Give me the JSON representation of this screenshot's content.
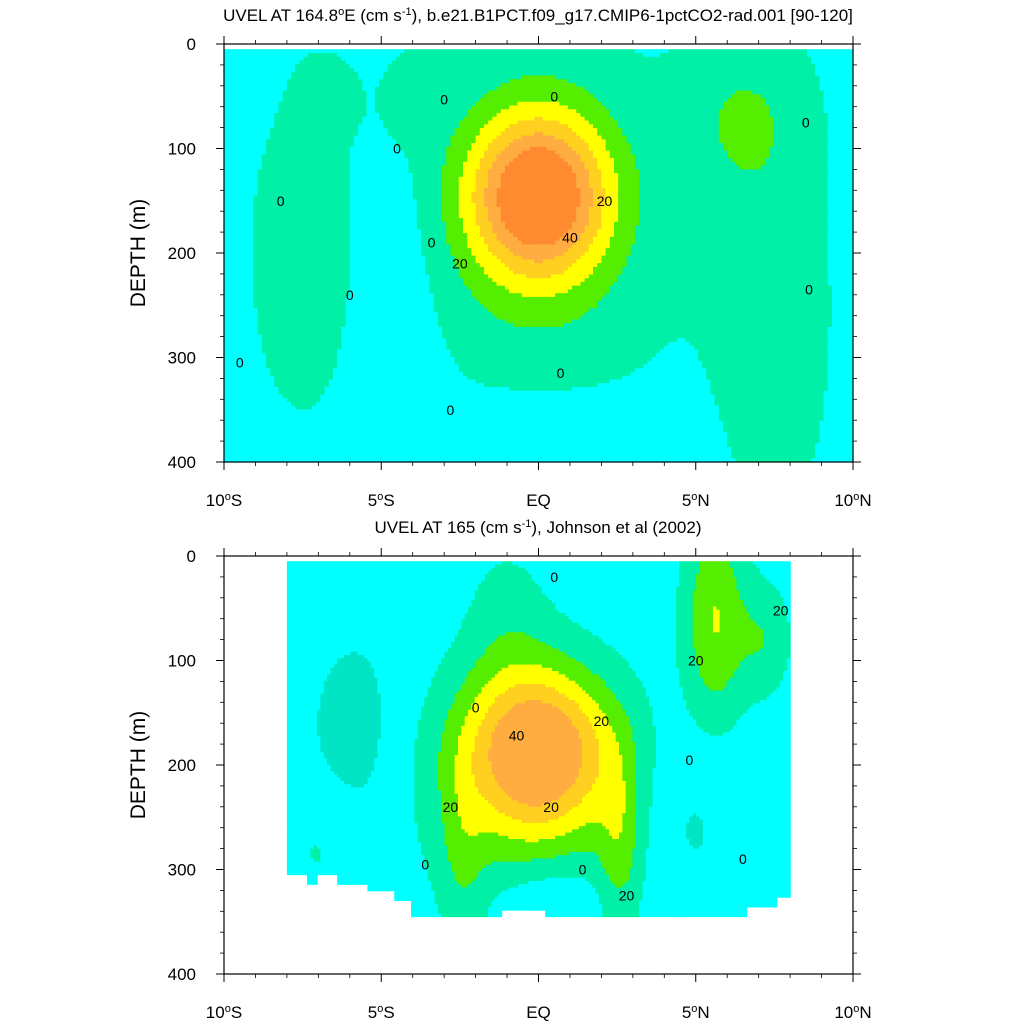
{
  "chart_data": [
    {
      "type": "heatmap",
      "title_parts": [
        "UVEL AT 164.8",
        "o",
        "E (cm s",
        "-1",
        "), b.e21.B1PCT.f09_g17.CMIP6-1pctCO2-rad.001 [90-120]"
      ],
      "ylabel": "DEPTH (m)",
      "x_range": [
        -10,
        10
      ],
      "ylim": [
        0,
        400
      ],
      "x_ticks": [
        {
          "value": -10,
          "parts": [
            "10",
            "o",
            "S"
          ]
        },
        {
          "value": -5,
          "parts": [
            "5",
            "o",
            "S"
          ]
        },
        {
          "value": 0,
          "parts": [
            "EQ"
          ]
        },
        {
          "value": 5,
          "parts": [
            "5",
            "o",
            "N"
          ]
        },
        {
          "value": 10,
          "parts": [
            "10",
            "o",
            "N"
          ]
        }
      ],
      "y_ticks": [
        "0",
        "100",
        "200",
        "300",
        "400"
      ],
      "contour_levels": [
        -10,
        0,
        10,
        20,
        30,
        40,
        50
      ],
      "contour_colors": [
        "#00e5c4",
        "#00ffff",
        "#00f0a8",
        "#55ee00",
        "#ffff00",
        "#ffd020",
        "#ffac40",
        "#ff8a30"
      ],
      "contour_labels": [
        {
          "text": "0",
          "x": -3.0,
          "y": 53
        },
        {
          "text": "0",
          "x": 0.5,
          "y": 50
        },
        {
          "text": "20",
          "x": 2.1,
          "y": 150
        },
        {
          "text": "40",
          "x": 1.0,
          "y": 185
        },
        {
          "text": "20",
          "x": -2.5,
          "y": 210
        },
        {
          "text": "0",
          "x": -4.5,
          "y": 100
        },
        {
          "text": "0",
          "x": -8.2,
          "y": 150
        },
        {
          "text": "0",
          "x": -3.4,
          "y": 190
        },
        {
          "text": "0",
          "x": -6.0,
          "y": 240
        },
        {
          "text": "0",
          "x": -9.5,
          "y": 305
        },
        {
          "text": "0",
          "x": -2.8,
          "y": 350
        },
        {
          "text": "0",
          "x": 0.7,
          "y": 315
        },
        {
          "text": "0",
          "x": 8.5,
          "y": 75
        },
        {
          "text": "0",
          "x": 8.6,
          "y": 235
        }
      ]
    },
    {
      "type": "heatmap",
      "title_parts": [
        "UVEL AT 165 (cm s",
        "-1",
        "), Johnson et al (2002)"
      ],
      "ylabel": "DEPTH (m)",
      "x_range": [
        -10,
        10
      ],
      "ylim": [
        0,
        400
      ],
      "x_ticks": [
        {
          "value": -10,
          "parts": [
            "10",
            "o",
            "S"
          ]
        },
        {
          "value": -5,
          "parts": [
            "5",
            "o",
            "S"
          ]
        },
        {
          "value": 0,
          "parts": [
            "EQ"
          ]
        },
        {
          "value": 5,
          "parts": [
            "5",
            "o",
            "N"
          ]
        },
        {
          "value": 10,
          "parts": [
            "10",
            "o",
            "N"
          ]
        }
      ],
      "y_ticks": [
        "0",
        "100",
        "200",
        "300",
        "400"
      ],
      "data_extent": {
        "x": [
          -8,
          8
        ],
        "y": [
          5,
          345
        ]
      },
      "contour_levels": [
        -10,
        0,
        10,
        20,
        30,
        40
      ],
      "contour_colors": [
        "#00e5c4",
        "#00ffff",
        "#00f0a8",
        "#55ee00",
        "#ffff00",
        "#ffd020",
        "#ffac40"
      ],
      "contour_labels": [
        {
          "text": "0",
          "x": 0.5,
          "y": 20
        },
        {
          "text": "20",
          "x": 7.7,
          "y": 52
        },
        {
          "text": "20",
          "x": 5.0,
          "y": 100
        },
        {
          "text": "0",
          "x": -2.0,
          "y": 145
        },
        {
          "text": "20",
          "x": 2.0,
          "y": 158
        },
        {
          "text": "40",
          "x": -0.7,
          "y": 172
        },
        {
          "text": "0",
          "x": 4.8,
          "y": 195
        },
        {
          "text": "20",
          "x": 0.4,
          "y": 240
        },
        {
          "text": "20",
          "x": -2.8,
          "y": 240
        },
        {
          "text": "0",
          "x": -3.6,
          "y": 295
        },
        {
          "text": "0",
          "x": 1.4,
          "y": 300
        },
        {
          "text": "0",
          "x": 6.5,
          "y": 290
        },
        {
          "text": "20",
          "x": 2.8,
          "y": 325
        }
      ]
    }
  ]
}
